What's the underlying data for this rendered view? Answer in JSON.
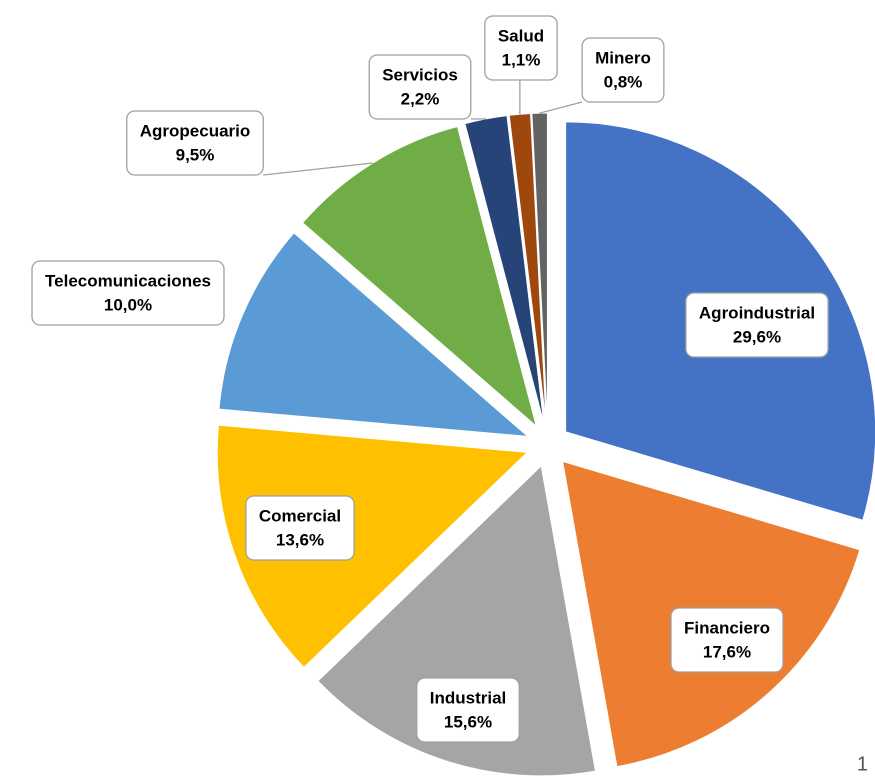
{
  "chart_data": {
    "type": "pie",
    "categories": [
      "Agroindustrial",
      "Financiero",
      "Industrial",
      "Comercial",
      "Telecomunicaciones",
      "Agropecuario",
      "Servicios",
      "Salud",
      "Minero"
    ],
    "values": [
      29.6,
      17.6,
      15.6,
      13.6,
      10.0,
      9.5,
      2.2,
      1.1,
      0.8
    ],
    "value_labels": [
      "29,6%",
      "17,6%",
      "15,6%",
      "13,6%",
      "10,0%",
      "9,5%",
      "2,2%",
      "1,1%",
      "0,8%"
    ],
    "colors": [
      "#4472c4",
      "#ed7d31",
      "#a5a5a5",
      "#ffc000",
      "#5b9bd5",
      "#70ad47",
      "#264478",
      "#9e480e",
      "#636363"
    ]
  },
  "page_number": "1"
}
